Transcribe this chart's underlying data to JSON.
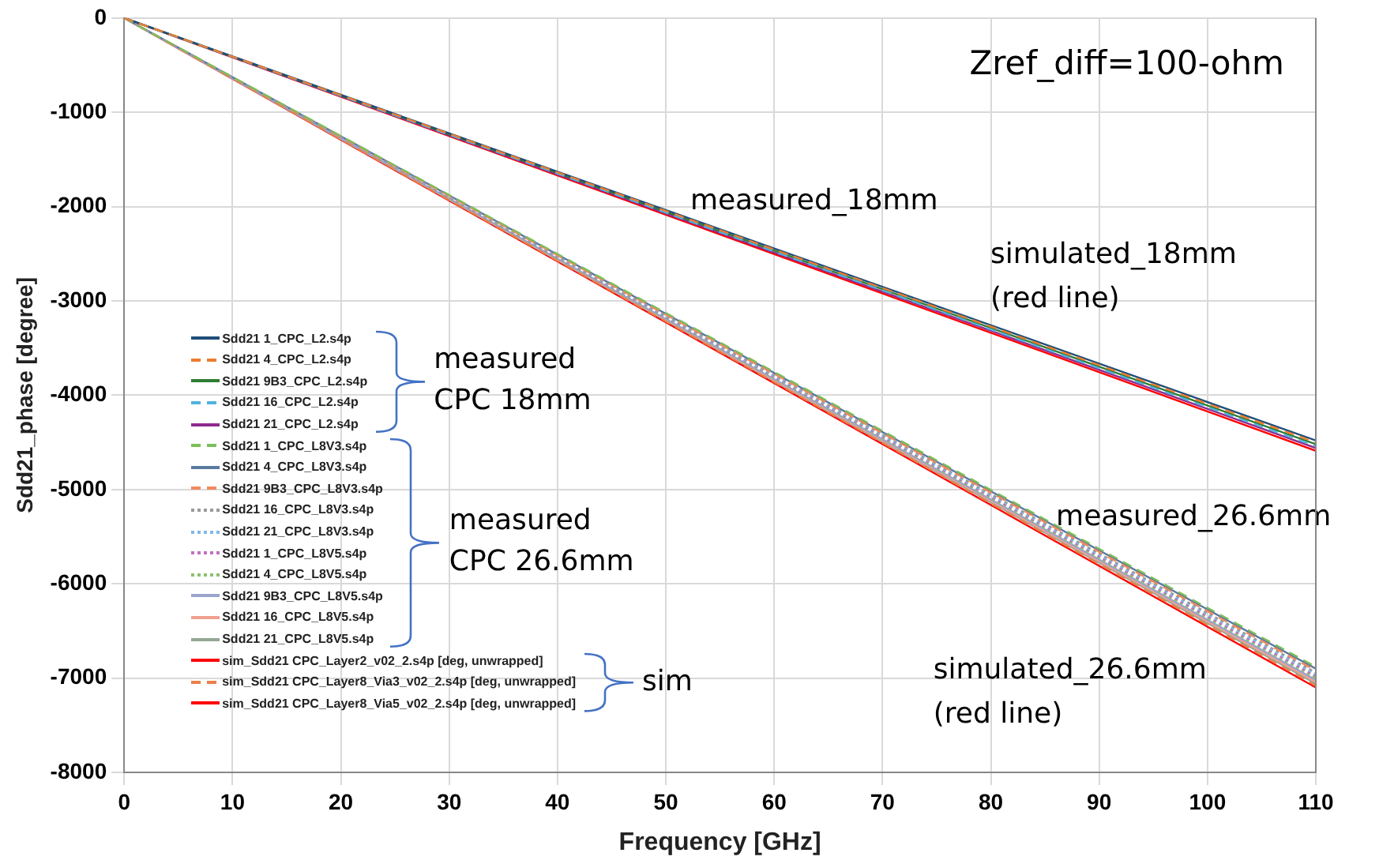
{
  "chart_data": {
    "type": "line",
    "xlabel": "Frequency [GHz]",
    "ylabel": "Sdd21_phase [degree]",
    "x": [
      0,
      110
    ],
    "xlim": [
      0,
      110
    ],
    "xticks": [
      0,
      10,
      20,
      30,
      40,
      50,
      60,
      70,
      80,
      90,
      100,
      110
    ],
    "ylim": [
      -8000,
      0
    ],
    "yticks": [
      -8000,
      -7000,
      -6000,
      -5000,
      -4000,
      -3000,
      -2000,
      -1000,
      0
    ],
    "grid": true,
    "legend": "left",
    "marker": "none",
    "series": [
      {
        "name": "Sdd21 1_CPC_L2.s4p",
        "color": "#1f4e79",
        "line_style": "solid",
        "values": [
          0,
          -4480
        ]
      },
      {
        "name": "Sdd21 4_CPC_L2.s4p",
        "color": "#ed7d31",
        "line_style": "dashed",
        "values": [
          0,
          -4500
        ]
      },
      {
        "name": "Sdd21 9B3_CPC_L2.s4p",
        "color": "#2e7d32",
        "line_style": "solid",
        "values": [
          0,
          -4520
        ]
      },
      {
        "name": "Sdd21 16_CPC_L2.s4p",
        "color": "#4fb3e0",
        "line_style": "dashed",
        "values": [
          0,
          -4540
        ]
      },
      {
        "name": "Sdd21 21_CPC_L2.s4p",
        "color": "#8e2a8e",
        "line_style": "solid",
        "values": [
          0,
          -4560
        ]
      },
      {
        "name": "Sdd21 1_CPC_L8V3.s4p",
        "color": "#7cbf5a",
        "line_style": "dashed",
        "values": [
          0,
          -6880
        ]
      },
      {
        "name": "Sdd21 4_CPC_L8V3.s4p",
        "color": "#5a7aa0",
        "line_style": "solid",
        "values": [
          0,
          -6900
        ]
      },
      {
        "name": "Sdd21 9B3_CPC_L8V3.s4p",
        "color": "#f08a60",
        "line_style": "dashed",
        "values": [
          0,
          -6920
        ]
      },
      {
        "name": "Sdd21 16_CPC_L8V3.s4p",
        "color": "#999999",
        "line_style": "dotted",
        "values": [
          0,
          -6940
        ]
      },
      {
        "name": "Sdd21 21_CPC_L8V3.s4p",
        "color": "#7fb8e8",
        "line_style": "dotted",
        "values": [
          0,
          -6960
        ]
      },
      {
        "name": "Sdd21 1_CPC_L8V5.s4p",
        "color": "#c070c0",
        "line_style": "dotted",
        "values": [
          0,
          -6980
        ]
      },
      {
        "name": "Sdd21 4_CPC_L8V5.s4p",
        "color": "#8cc070",
        "line_style": "dotted",
        "values": [
          0,
          -7000
        ]
      },
      {
        "name": "Sdd21 9B3_CPC_L8V5.s4p",
        "color": "#9aa4cc",
        "line_style": "solid",
        "values": [
          0,
          -7020
        ]
      },
      {
        "name": "Sdd21 16_CPC_L8V5.s4p",
        "color": "#f0a090",
        "line_style": "solid",
        "values": [
          0,
          -7040
        ]
      },
      {
        "name": "Sdd21 21_CPC_L8V5.s4p",
        "color": "#94a894",
        "line_style": "solid",
        "values": [
          0,
          -7060
        ]
      },
      {
        "name": "sim_Sdd21 CPC_Layer2_v02_2.s4p [deg, unwrapped]",
        "color": "#ff0000",
        "line_style": "solid",
        "values": [
          0,
          -4590
        ]
      },
      {
        "name": "sim_Sdd21 CPC_Layer8_Via3_v02_2.s4p [deg, unwrapped]",
        "color": "#e8804a",
        "line_style": "dashed",
        "values": [
          0,
          -7080
        ]
      },
      {
        "name": "sim_Sdd21 CPC_Layer8_Via5_v02_2.s4p [deg, unwrapped]",
        "color": "#ff0000",
        "line_style": "solid",
        "values": [
          0,
          -7100
        ]
      }
    ],
    "annotations": [
      "Zref_diff=100-ohm",
      "measured\nCPC 18mm",
      "measured\nCPC 26.6mm",
      "sim",
      "measured_18mm",
      "simulated_18mm\n(red line)",
      "measured_26.6mm",
      "simulated_26.6mm\n(red line)"
    ]
  }
}
